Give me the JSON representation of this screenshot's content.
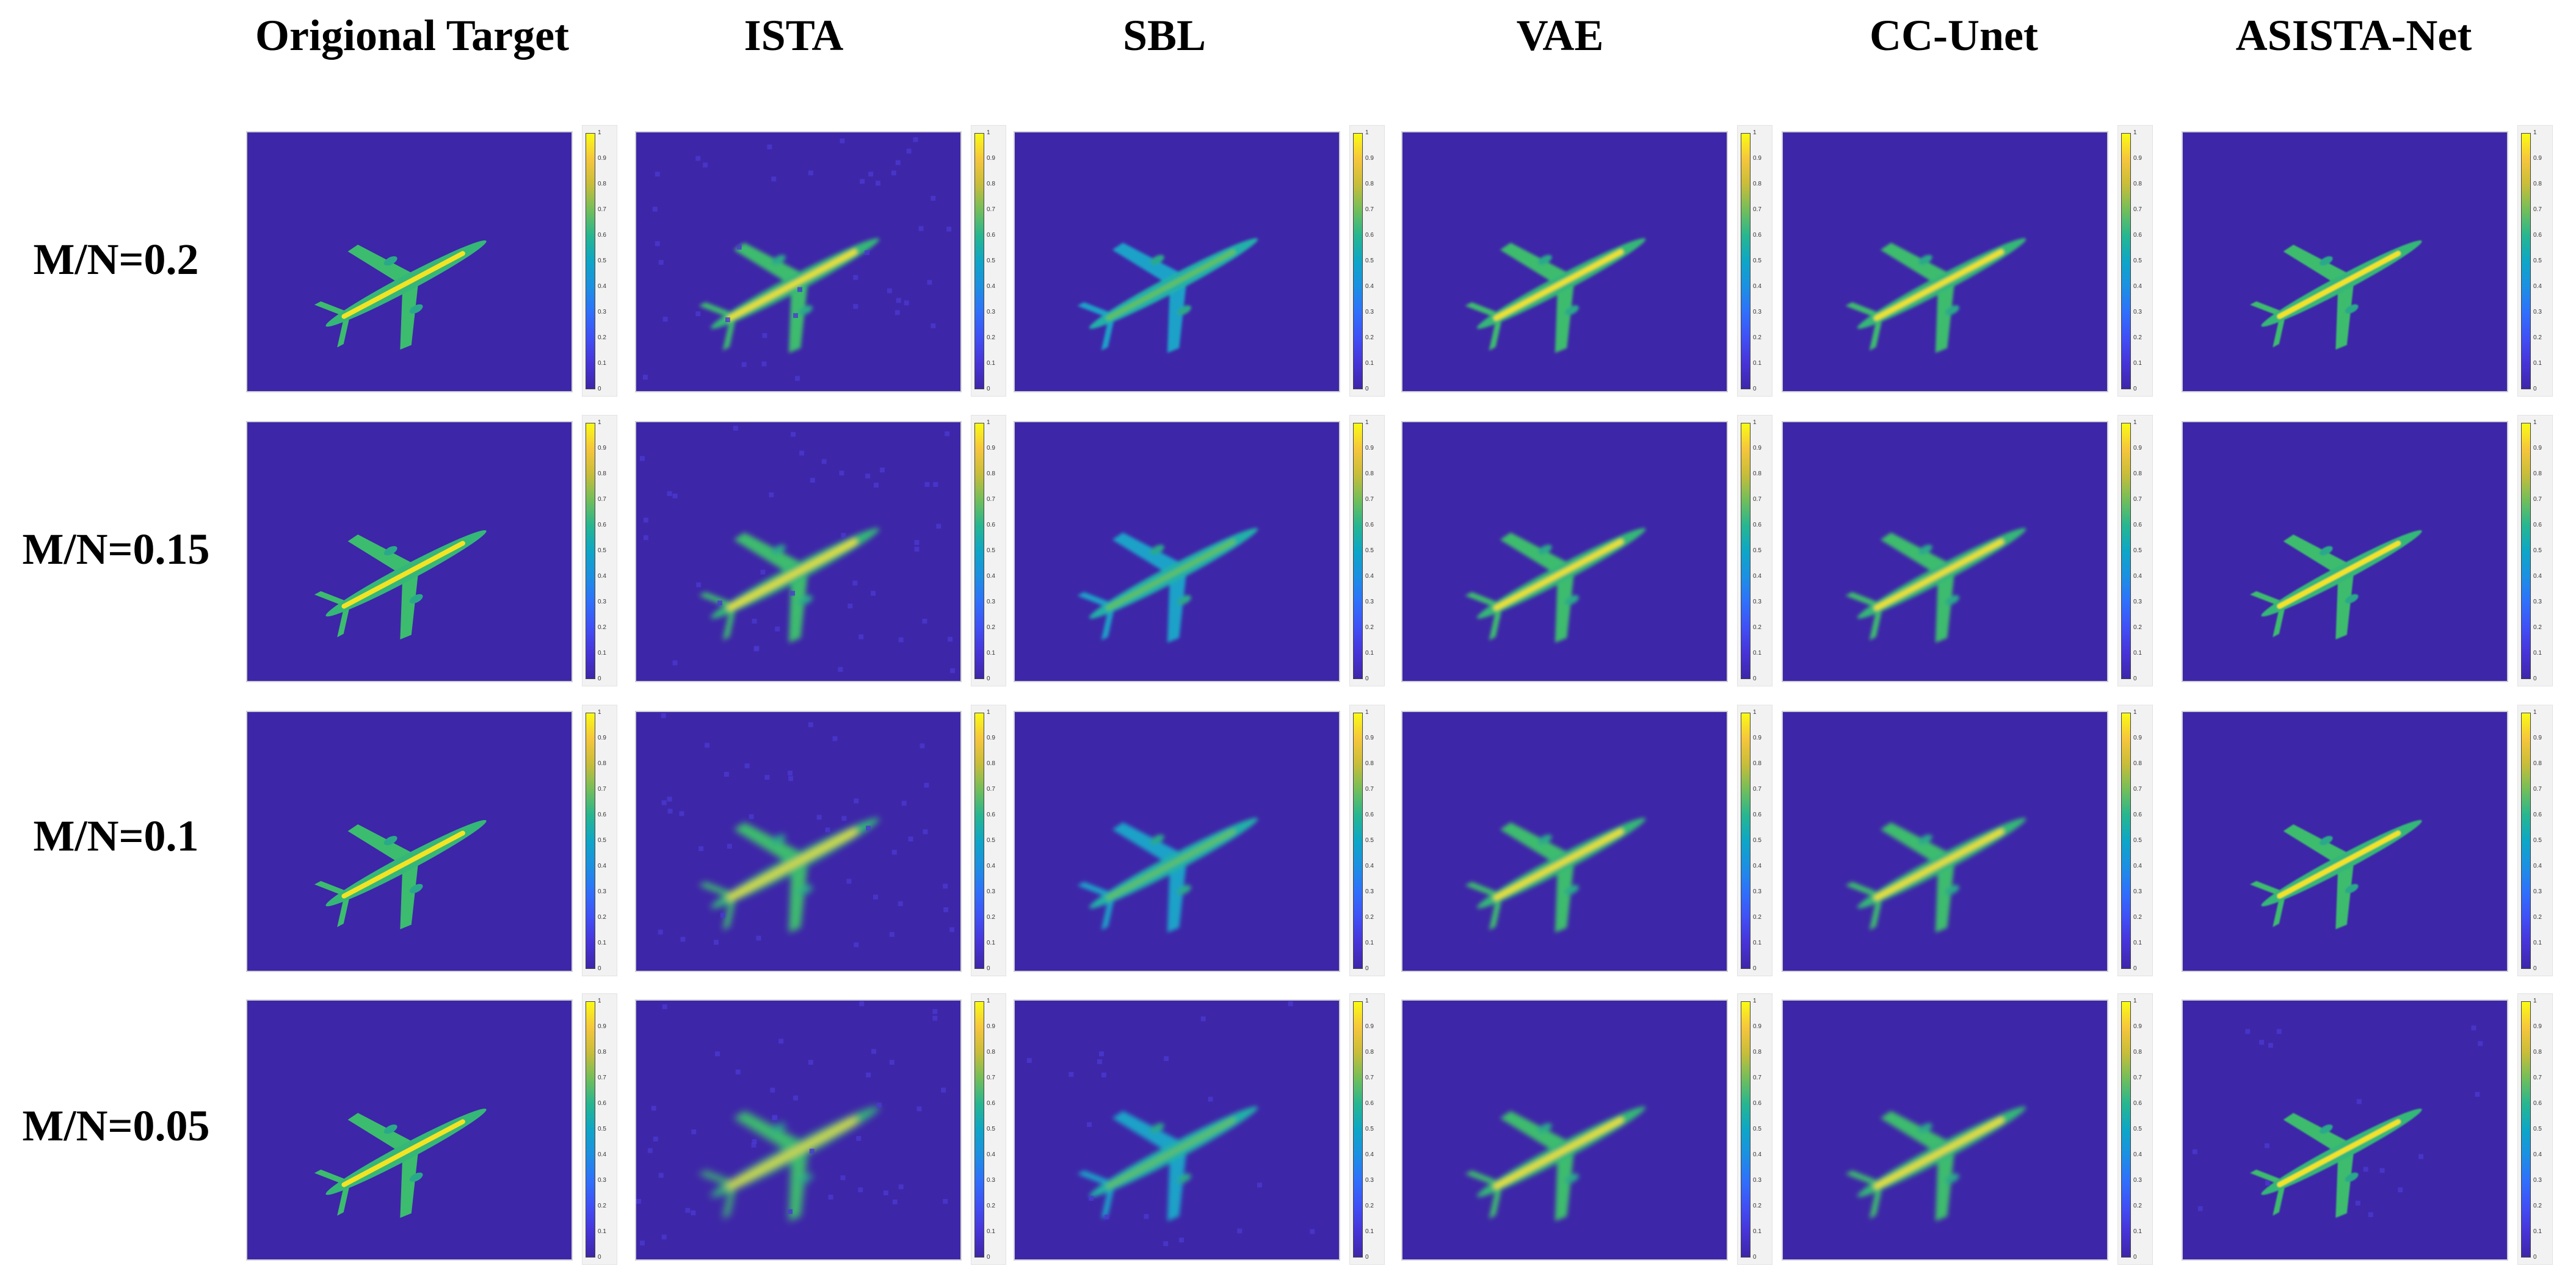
{
  "columns": [
    "Origional Target",
    "ISTA",
    "SBL",
    "VAE",
    "CC-Unet",
    "ASISTA-Net"
  ],
  "rows": [
    "M/N=0.2",
    "M/N=0.15",
    "M/N=0.1",
    "M/N=0.05"
  ],
  "colorbar": {
    "ticks": [
      "0",
      "0.1",
      "0.2",
      "0.3",
      "0.4",
      "0.5",
      "0.6",
      "0.7",
      "0.8",
      "0.9",
      "1"
    ],
    "range": [
      0,
      1
    ],
    "colormap": "parula"
  },
  "colors": {
    "background": "#3e26a8",
    "low": "#4050f5",
    "mid": "#27b690",
    "high": "#f9fb14"
  }
}
